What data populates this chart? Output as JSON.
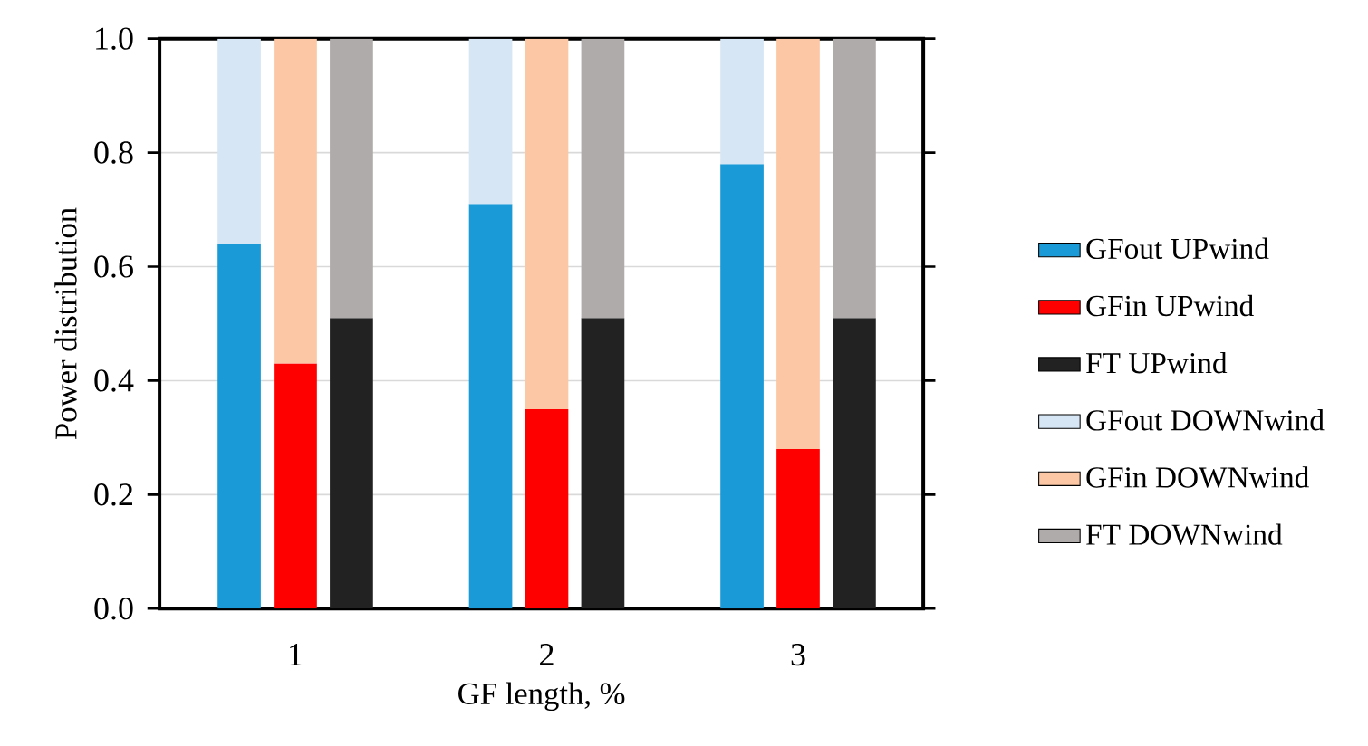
{
  "chart_data": {
    "type": "bar",
    "stacked": true,
    "xlabel": "GF length, %",
    "ylabel": "Power distribution",
    "categories": [
      null,
      "1",
      null,
      null,
      "2",
      null,
      null,
      "3",
      null
    ],
    "series": [
      {
        "name": "GFout UPwind",
        "color": "#1a9ad6",
        "values": [
          0.64,
          null,
          null,
          0.71,
          null,
          null,
          0.78,
          null,
          null
        ]
      },
      {
        "name": "GFin UPwind",
        "color": "#ff0000",
        "values": [
          null,
          0.43,
          null,
          null,
          0.35,
          null,
          null,
          0.28,
          null
        ]
      },
      {
        "name": "FT UPwind",
        "color": "#222222",
        "values": [
          null,
          null,
          0.51,
          null,
          null,
          0.51,
          null,
          null,
          0.51
        ]
      },
      {
        "name": "GFout DOWNwind",
        "color": "#d6e6f5",
        "values": [
          0.36,
          null,
          null,
          0.29,
          null,
          null,
          0.22,
          null,
          null
        ]
      },
      {
        "name": "GFin DOWNwind",
        "color": "#fcc7a5",
        "values": [
          null,
          0.57,
          null,
          null,
          0.65,
          null,
          null,
          0.72,
          null
        ]
      },
      {
        "name": "FT DOWNwind",
        "color": "#b0abab",
        "values": [
          null,
          null,
          0.49,
          null,
          null,
          0.49,
          null,
          null,
          0.49
        ]
      }
    ],
    "ylim": [
      0,
      1.0
    ],
    "yticks": [
      {
        "value": 0,
        "label": "0.0"
      },
      {
        "value": 0.2,
        "label": "0.2"
      },
      {
        "value": 0.4,
        "label": "0.4"
      },
      {
        "value": 0.6,
        "label": "0.6"
      },
      {
        "value": 0.8,
        "label": "0.8"
      },
      {
        "value": 1.0,
        "label": "1.0"
      }
    ],
    "grid": "y",
    "legend": "right"
  }
}
